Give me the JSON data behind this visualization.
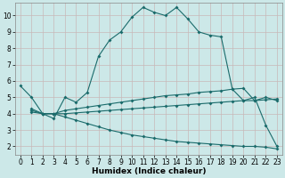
{
  "bg_color": "#cce8e8",
  "grid_color": "#c8b8b8",
  "line_color": "#1a6b6b",
  "line_width": 0.8,
  "marker": "D",
  "marker_size": 2.0,
  "xlabel": "Humidex (Indice chaleur)",
  "xlabel_fontsize": 6.5,
  "tick_fontsize": 5.5,
  "xlim": [
    -0.5,
    23.5
  ],
  "ylim": [
    1.5,
    10.8
  ],
  "yticks": [
    2,
    3,
    4,
    5,
    6,
    7,
    8,
    9,
    10
  ],
  "xtick_labels": [
    "0",
    "1",
    "2",
    "3",
    "4",
    "5",
    "6",
    "7",
    "8",
    "9",
    "10",
    "11",
    "12",
    "13",
    "14",
    "15",
    "16",
    "17",
    "18",
    "19",
    "20",
    "21",
    "22",
    "23"
  ],
  "line1_x": [
    0,
    1,
    2,
    3,
    4,
    5,
    6,
    7,
    8,
    9,
    10,
    11,
    12,
    13,
    14,
    15,
    16,
    17,
    18,
    19,
    20,
    21,
    22,
    23
  ],
  "line1_y": [
    5.7,
    5.0,
    4.0,
    3.7,
    5.0,
    4.7,
    5.3,
    7.5,
    8.5,
    9.0,
    9.9,
    10.5,
    10.2,
    10.0,
    10.5,
    9.8,
    9.0,
    8.8,
    8.7,
    5.5,
    4.8,
    5.0,
    3.3,
    2.0
  ],
  "line2_x": [
    1,
    2,
    3,
    4,
    5,
    6,
    7,
    8,
    9,
    10,
    11,
    12,
    13,
    14,
    15,
    16,
    17,
    18,
    19,
    20,
    21,
    22,
    23
  ],
  "line2_y": [
    4.3,
    4.0,
    4.0,
    4.2,
    4.3,
    4.4,
    4.5,
    4.6,
    4.7,
    4.8,
    4.9,
    5.0,
    5.1,
    5.15,
    5.2,
    5.3,
    5.35,
    5.4,
    5.5,
    5.55,
    4.8,
    5.0,
    4.8
  ],
  "line3_x": [
    1,
    2,
    3,
    4,
    5,
    6,
    7,
    8,
    9,
    10,
    11,
    12,
    13,
    14,
    15,
    16,
    17,
    18,
    19,
    20,
    21,
    22,
    23
  ],
  "line3_y": [
    4.2,
    4.0,
    4.0,
    4.0,
    4.05,
    4.1,
    4.15,
    4.2,
    4.25,
    4.3,
    4.35,
    4.4,
    4.45,
    4.5,
    4.55,
    4.6,
    4.65,
    4.7,
    4.75,
    4.8,
    4.8,
    4.85,
    4.9
  ],
  "line4_x": [
    1,
    2,
    3,
    4,
    5,
    6,
    7,
    8,
    9,
    10,
    11,
    12,
    13,
    14,
    15,
    16,
    17,
    18,
    19,
    20,
    21,
    22,
    23
  ],
  "line4_y": [
    4.1,
    4.0,
    4.0,
    3.8,
    3.6,
    3.4,
    3.2,
    3.0,
    2.85,
    2.7,
    2.6,
    2.5,
    2.4,
    2.3,
    2.25,
    2.2,
    2.15,
    2.1,
    2.05,
    2.0,
    2.0,
    1.95,
    1.85
  ]
}
